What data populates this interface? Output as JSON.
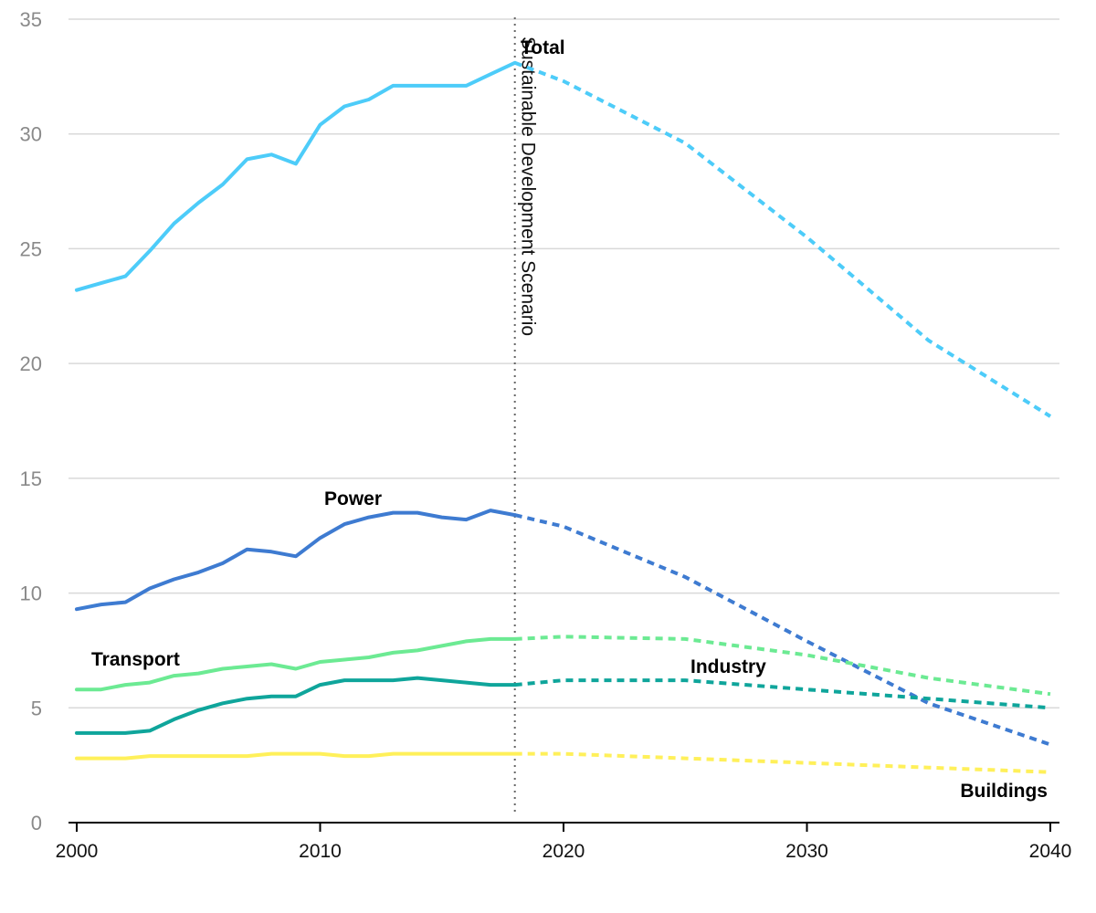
{
  "chart_data": {
    "type": "line",
    "title": "",
    "xlabel": "",
    "ylabel": "",
    "xlim": [
      2000,
      2040
    ],
    "ylim": [
      0,
      35
    ],
    "x_ticks": [
      2000,
      2010,
      2020,
      2030,
      2040
    ],
    "y_ticks": [
      0,
      5,
      10,
      15,
      20,
      25,
      30,
      35
    ],
    "grid": true,
    "legend": "none",
    "reference_line": {
      "x": 2018,
      "label": "Sustainable Development Scenario"
    },
    "series": [
      {
        "name": "Total",
        "color": "#4DCCF9",
        "historical": {
          "x": [
            2000,
            2001,
            2002,
            2003,
            2004,
            2005,
            2006,
            2007,
            2008,
            2009,
            2010,
            2011,
            2012,
            2013,
            2014,
            2015,
            2016,
            2017,
            2018
          ],
          "y": [
            23.2,
            23.5,
            23.8,
            24.9,
            26.1,
            27.0,
            27.8,
            28.9,
            29.1,
            28.7,
            30.4,
            31.2,
            31.5,
            32.1,
            32.1,
            32.1,
            32.1,
            32.6,
            33.1
          ]
        },
        "projection": {
          "x": [
            2018,
            2020,
            2025,
            2030,
            2035,
            2040
          ],
          "y": [
            33.1,
            32.3,
            29.6,
            25.5,
            21.0,
            17.7
          ]
        }
      },
      {
        "name": "Power",
        "color": "#3E7BD1",
        "historical": {
          "x": [
            2000,
            2001,
            2002,
            2003,
            2004,
            2005,
            2006,
            2007,
            2008,
            2009,
            2010,
            2011,
            2012,
            2013,
            2014,
            2015,
            2016,
            2017,
            2018
          ],
          "y": [
            9.3,
            9.5,
            9.6,
            10.2,
            10.6,
            10.9,
            11.3,
            11.9,
            11.8,
            11.6,
            12.4,
            13.0,
            13.3,
            13.5,
            13.5,
            13.3,
            13.2,
            13.6,
            13.4
          ]
        },
        "projection": {
          "x": [
            2018,
            2020,
            2025,
            2030,
            2035,
            2040
          ],
          "y": [
            13.4,
            12.9,
            10.7,
            7.9,
            5.2,
            3.4
          ]
        }
      },
      {
        "name": "Transport",
        "color": "#6CEA93",
        "historical": {
          "x": [
            2000,
            2001,
            2002,
            2003,
            2004,
            2005,
            2006,
            2007,
            2008,
            2009,
            2010,
            2011,
            2012,
            2013,
            2014,
            2015,
            2016,
            2017,
            2018
          ],
          "y": [
            5.8,
            5.8,
            6.0,
            6.1,
            6.4,
            6.5,
            6.7,
            6.8,
            6.9,
            6.7,
            7.0,
            7.1,
            7.2,
            7.4,
            7.5,
            7.7,
            7.9,
            8.0,
            8.0
          ]
        },
        "projection": {
          "x": [
            2018,
            2020,
            2025,
            2030,
            2035,
            2040
          ],
          "y": [
            8.0,
            8.1,
            8.0,
            7.3,
            6.3,
            5.6
          ]
        }
      },
      {
        "name": "Industry",
        "color": "#0FA59B",
        "historical": {
          "x": [
            2000,
            2001,
            2002,
            2003,
            2004,
            2005,
            2006,
            2007,
            2008,
            2009,
            2010,
            2011,
            2012,
            2013,
            2014,
            2015,
            2016,
            2017,
            2018
          ],
          "y": [
            3.9,
            3.9,
            3.9,
            4.0,
            4.5,
            4.9,
            5.2,
            5.4,
            5.5,
            5.5,
            6.0,
            6.2,
            6.2,
            6.2,
            6.3,
            6.2,
            6.1,
            6.0,
            6.0
          ]
        },
        "projection": {
          "x": [
            2018,
            2020,
            2025,
            2030,
            2035,
            2040
          ],
          "y": [
            6.0,
            6.2,
            6.2,
            5.8,
            5.4,
            5.0
          ]
        }
      },
      {
        "name": "Buildings",
        "color": "#FFF05A",
        "historical": {
          "x": [
            2000,
            2001,
            2002,
            2003,
            2004,
            2005,
            2006,
            2007,
            2008,
            2009,
            2010,
            2011,
            2012,
            2013,
            2014,
            2015,
            2016,
            2017,
            2018
          ],
          "y": [
            2.8,
            2.8,
            2.8,
            2.9,
            2.9,
            2.9,
            2.9,
            2.9,
            3.0,
            3.0,
            3.0,
            2.9,
            2.9,
            3.0,
            3.0,
            3.0,
            3.0,
            3.0,
            3.0
          ]
        },
        "projection": {
          "x": [
            2018,
            2020,
            2025,
            2030,
            2035,
            2040
          ],
          "y": [
            3.0,
            3.0,
            2.8,
            2.6,
            2.4,
            2.2
          ]
        }
      }
    ]
  }
}
